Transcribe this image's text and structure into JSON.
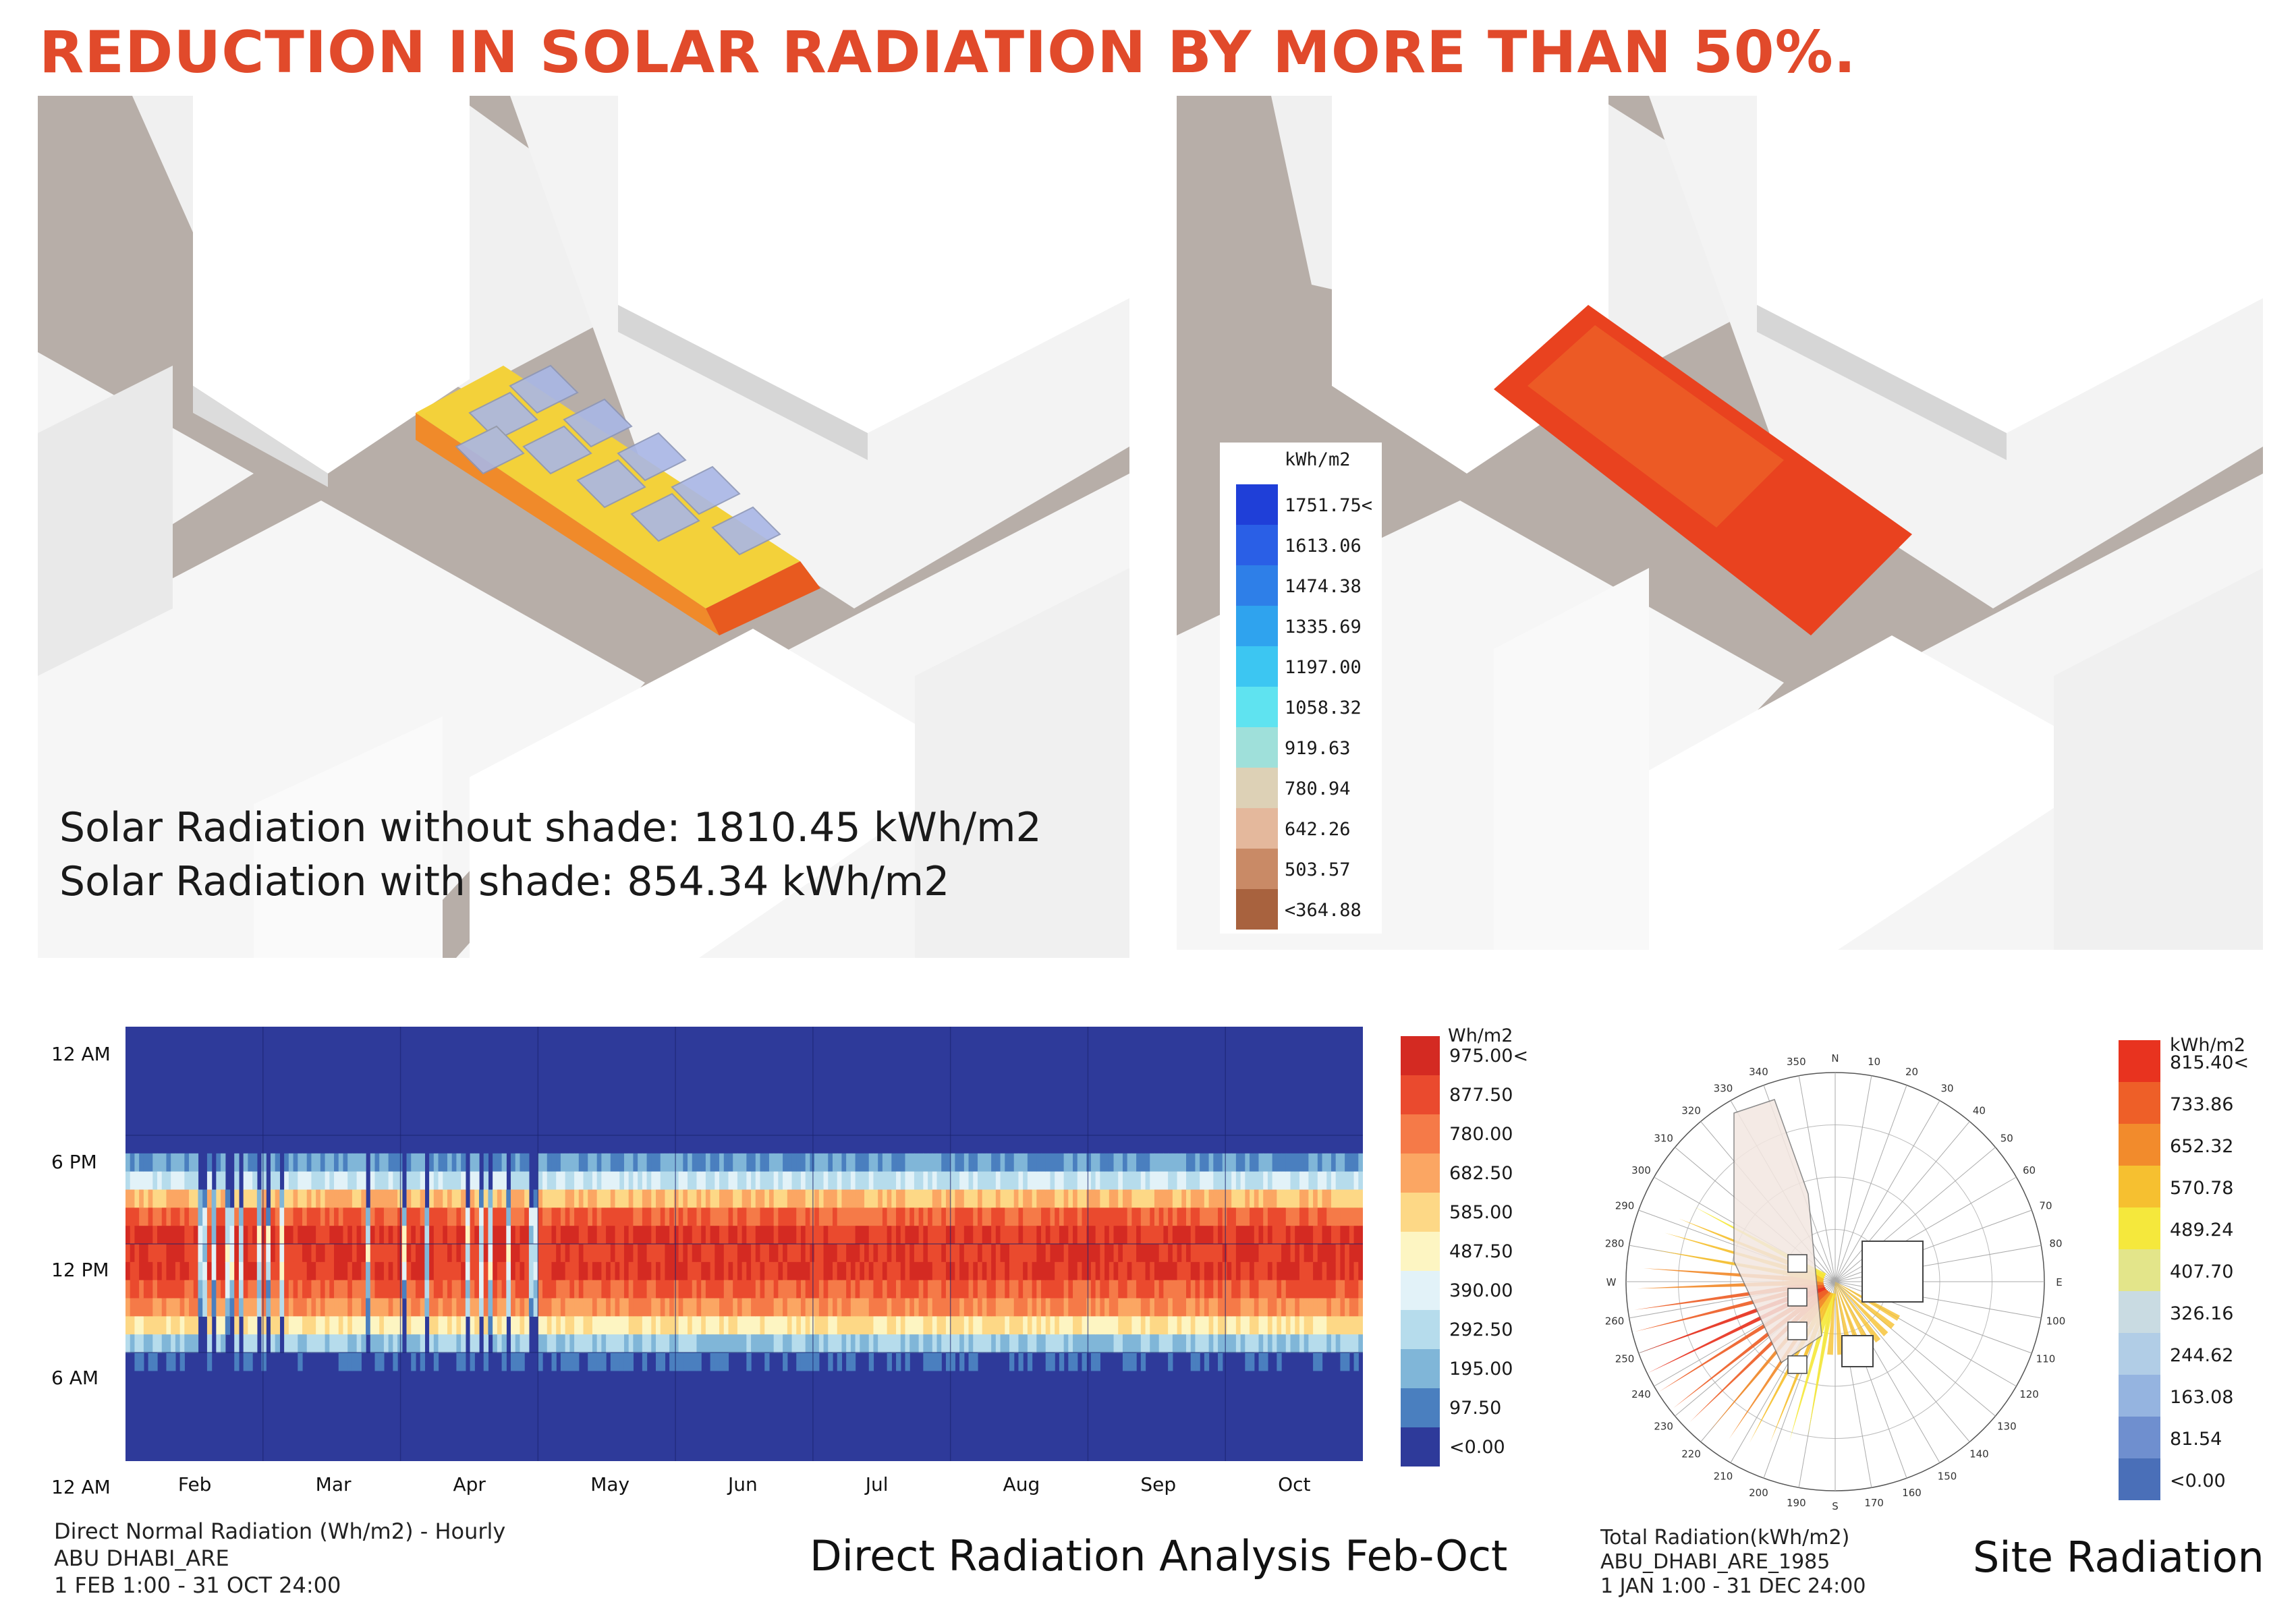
{
  "title": "REDUCTION IN SOLAR RADIATION BY MORE THAN 50%.",
  "left_render": {
    "line1": "Solar Radiation without shade: 1810.45 kWh/m2",
    "line2": "Solar Radiation with shade: 854.34 kWh/m2"
  },
  "right_render_legend": {
    "unit": "kWh/m2",
    "items": [
      {
        "label": "1751.75<",
        "color": "#1f3fd8"
      },
      {
        "label": "1613.06",
        "color": "#2a5fe6"
      },
      {
        "label": "1474.38",
        "color": "#2e7fe8"
      },
      {
        "label": "1335.69",
        "color": "#2fa3ee"
      },
      {
        "label": "1197.00",
        "color": "#3cc6f2"
      },
      {
        "label": "1058.32",
        "color": "#5fe3f0"
      },
      {
        "label": "919.63",
        "color": "#9fe0da"
      },
      {
        "label": "780.94",
        "color": "#ddd1b6"
      },
      {
        "label": "642.26",
        "color": "#e4b89c"
      },
      {
        "label": "503.57",
        "color": "#c98a66"
      },
      {
        "label": "<364.88",
        "color": "#a8623e"
      }
    ]
  },
  "heatmap": {
    "y_ticks": [
      "12 AM",
      "6 PM",
      "12 PM",
      "6 AM",
      "12 AM"
    ],
    "x_ticks": [
      "Feb",
      "Mar",
      "Apr",
      "May",
      "Jun",
      "Jul",
      "Aug",
      "Sep",
      "Oct"
    ],
    "meta_lines": [
      "Direct Normal Radiation (Wh/m2) - Hourly",
      "ABU DHABI_ARE",
      "1 FEB 1:00 - 31 OCT 24:00"
    ],
    "caption": "Direct Radiation Analysis Feb-Oct",
    "legend_unit": "Wh/m2",
    "legend": [
      {
        "label": "975.00<",
        "color": "#d42a22"
      },
      {
        "label": "877.50",
        "color": "#ea4a2e"
      },
      {
        "label": "780.00",
        "color": "#f57a48"
      },
      {
        "label": "682.50",
        "color": "#fba663"
      },
      {
        "label": "585.00",
        "color": "#fdd886"
      },
      {
        "label": "487.50",
        "color": "#fdf5c2"
      },
      {
        "label": "390.00",
        "color": "#e2f2f8"
      },
      {
        "label": "292.50",
        "color": "#b6dcec"
      },
      {
        "label": "195.00",
        "color": "#80b6d8"
      },
      {
        "label": "97.50",
        "color": "#4a7fbf"
      },
      {
        "label": "<0.00",
        "color": "#2e3a9a"
      }
    ]
  },
  "sunrose": {
    "compass_labels": [
      "N",
      "10",
      "20",
      "30",
      "40",
      "50",
      "60",
      "70",
      "80",
      "E",
      "100",
      "110",
      "120",
      "130",
      "140",
      "150",
      "160",
      "170",
      "S",
      "190",
      "200",
      "210",
      "220",
      "230",
      "240",
      "250",
      "260",
      "W",
      "280",
      "290",
      "300",
      "310",
      "320",
      "330",
      "340",
      "350"
    ],
    "meta_lines": [
      "Total Radiation(kWh/m2)",
      "ABU_DHABI_ARE_1985",
      "1 JAN 1:00 - 31 DEC 24:00"
    ],
    "caption": "Site Radiation",
    "legend_unit": "kWh/m2",
    "legend": [
      {
        "label": "815.40<",
        "color": "#e8331f"
      },
      {
        "label": "733.86",
        "color": "#ee5f28"
      },
      {
        "label": "652.32",
        "color": "#f28b2c"
      },
      {
        "label": "570.78",
        "color": "#f6c030"
      },
      {
        "label": "489.24",
        "color": "#f5e83c"
      },
      {
        "label": "407.70",
        "color": "#e3e58a"
      },
      {
        "label": "326.16",
        "color": "#c9dbe2"
      },
      {
        "label": "244.62",
        "color": "#b1cde6"
      },
      {
        "label": "163.08",
        "color": "#95b4e0"
      },
      {
        "label": "81.54",
        "color": "#6f8fcf"
      },
      {
        "label": "<0.00",
        "color": "#4a6fb8"
      }
    ]
  }
}
